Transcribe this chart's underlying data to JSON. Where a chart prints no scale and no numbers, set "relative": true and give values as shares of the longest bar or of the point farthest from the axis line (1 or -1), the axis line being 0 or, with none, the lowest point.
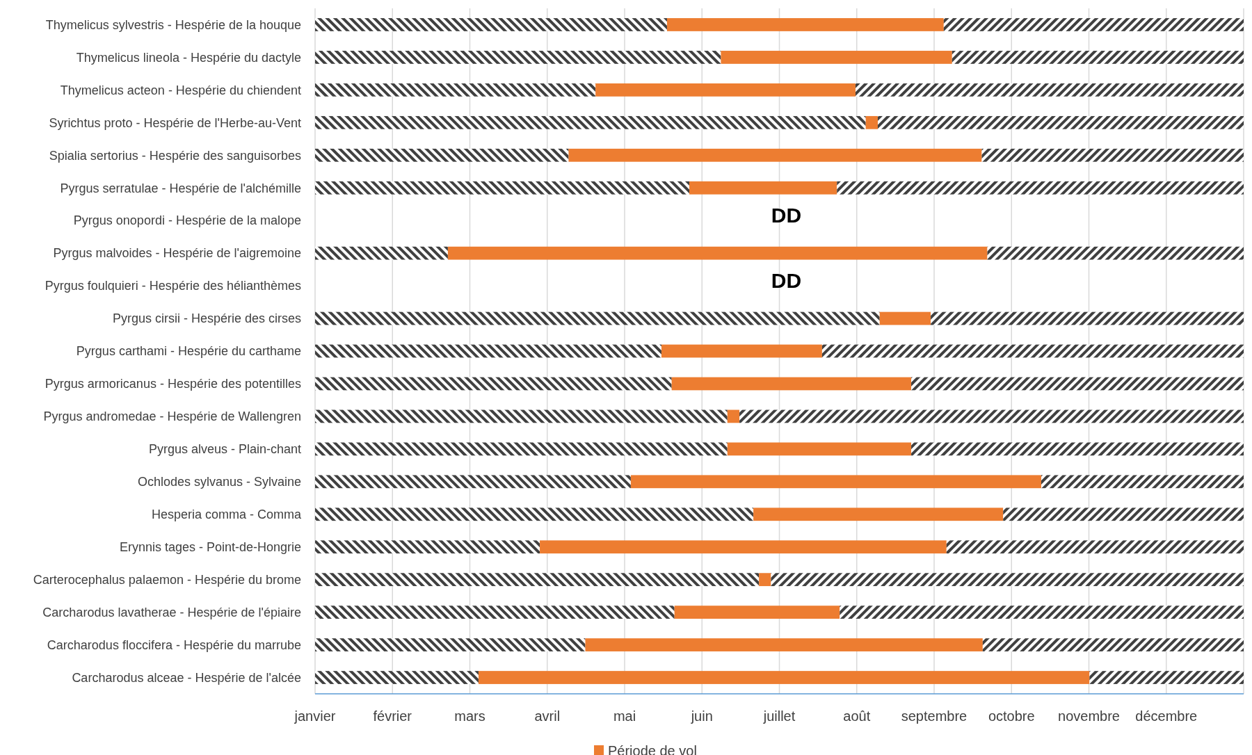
{
  "chart_data": {
    "type": "bar",
    "orientation": "horizontal",
    "stacked": true,
    "categories": [
      "Thymelicus sylvestris - Hespérie de la houque",
      "Thymelicus lineola - Hespérie du dactyle",
      "Thymelicus acteon - Hespérie du chiendent",
      "Syrichtus proto - Hespérie de l'Herbe-au-Vent",
      "Spialia sertorius - Hespérie des sanguisorbes",
      "Pyrgus serratulae - Hespérie de l'alchémille",
      "Pyrgus onopordi - Hespérie de la malope",
      "Pyrgus malvoides - Hespérie de l'aigremoine",
      "Pyrgus foulquieri - Hespérie des hélianthèmes",
      "Pyrgus cirsii - Hespérie des cirses",
      "Pyrgus carthami - Hespérie du carthame",
      "Pyrgus armoricanus - Hespérie des potentilles",
      "Pyrgus andromedae - Hespérie de Wallengren",
      "Pyrgus alveus - Plain-chant",
      "Ochlodes sylvanus - Sylvaine",
      "Hesperia comma - Comma",
      "Erynnis tages - Point-de-Hongrie",
      "Carterocephalus palaemon - Hespérie du brome",
      "Carcharodus lavatherae - Hespérie de l'épiaire",
      "Carcharodus floccifera - Hespérie du marrube",
      "Carcharodus alceae - Hespérie de l'alcée"
    ],
    "series": [
      {
        "color": "#404040",
        "values": [
          0.379,
          0.437,
          0.302,
          0.593,
          0.273,
          0.403,
          null,
          0.143,
          null,
          0.608,
          0.373,
          0.384,
          0.444,
          0.444,
          0.34,
          0.472,
          0.242,
          0.478,
          0.387,
          0.291,
          0.176
        ]
      },
      {
        "name": "Période de vol",
        "color": "#ed7d31",
        "values": [
          0.298,
          0.249,
          0.28,
          0.013,
          0.445,
          0.159,
          null,
          0.581,
          null,
          0.055,
          0.173,
          0.258,
          0.013,
          0.198,
          0.442,
          0.269,
          0.438,
          0.013,
          0.178,
          0.428,
          0.658
        ]
      },
      {
        "color": "#404040",
        "values": [
          0.323,
          0.314,
          0.418,
          0.394,
          0.282,
          0.438,
          null,
          0.276,
          null,
          0.337,
          0.454,
          0.358,
          0.543,
          0.358,
          0.218,
          0.259,
          0.32,
          0.509,
          0.435,
          0.281,
          0.166
        ]
      }
    ],
    "relative": true,
    "annotations": [
      "DD",
      "DD",
      "janvier",
      "février",
      "mars",
      "avril",
      "mai",
      "juin",
      "juillet",
      "août",
      "septembre",
      "octobre",
      "novembre",
      "décembre"
    ],
    "grid": "x",
    "legend": "bottom"
  }
}
